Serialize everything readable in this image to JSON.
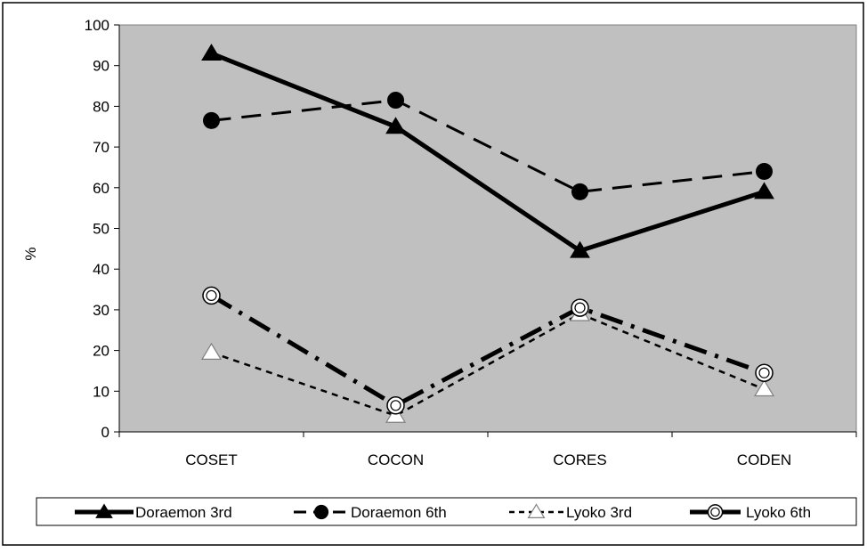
{
  "chart_data": {
    "type": "line",
    "categories": [
      "COSET",
      "COCON",
      "CORES",
      "CODEN"
    ],
    "ylabel": "%",
    "ylim": [
      0,
      100
    ],
    "yticks": [
      0,
      10,
      20,
      30,
      40,
      50,
      60,
      70,
      80,
      90,
      100
    ],
    "grid": false,
    "plot_background": "#c0c0c0",
    "legend_position": "bottom",
    "series": [
      {
        "name": "Doraemon 3rd",
        "values": [
          93,
          75,
          44.5,
          59
        ],
        "line": "solid-thick",
        "marker": "filled-triangle",
        "color": "#000000"
      },
      {
        "name": "Doraemon 6th",
        "values": [
          76.5,
          81.5,
          59,
          64
        ],
        "line": "long-dash",
        "marker": "filled-circle",
        "color": "#000000"
      },
      {
        "name": "Lyoko 3rd",
        "values": [
          19.5,
          4,
          29,
          10.5
        ],
        "line": "short-dash",
        "marker": "open-triangle",
        "color": "#000000"
      },
      {
        "name": "Lyoko 6th",
        "values": [
          33.5,
          6.5,
          30.5,
          14.5
        ],
        "line": "dash-dot-thick",
        "marker": "open-circle",
        "color": "#000000"
      }
    ]
  }
}
